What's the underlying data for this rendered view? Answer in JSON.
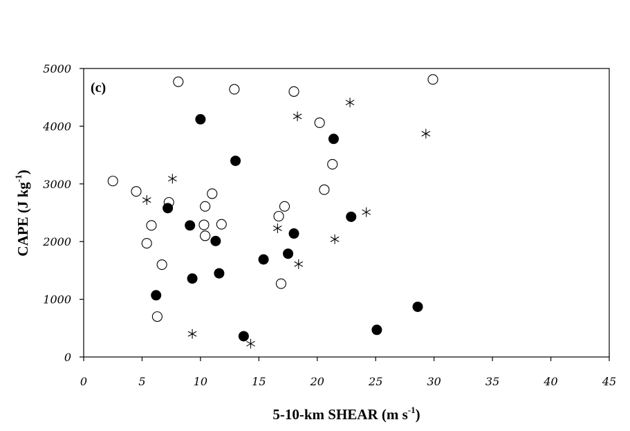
{
  "chart_data": {
    "type": "scatter",
    "panel_label": "(c)",
    "xlabel": "5-10-km SHEAR (m s",
    "xlabel_sup": "-1",
    "xlabel_end": ")",
    "ylabel": "CAPE (J kg",
    "ylabel_sup": "-1",
    "ylabel_end": ")",
    "xlim": [
      0,
      45
    ],
    "ylim": [
      0,
      5000
    ],
    "xticks": [
      0,
      5,
      10,
      15,
      20,
      25,
      30,
      35,
      40,
      45
    ],
    "yticks": [
      0,
      1000,
      2000,
      3000,
      4000,
      5000
    ],
    "grid": false,
    "legend": "none",
    "series": [
      {
        "marker": "open-circle",
        "points": [
          [
            2.5,
            3050
          ],
          [
            4.5,
            2870
          ],
          [
            5.4,
            1970
          ],
          [
            5.8,
            2280
          ],
          [
            6.3,
            700
          ],
          [
            6.7,
            1600
          ],
          [
            7.3,
            2680
          ],
          [
            8.1,
            4770
          ],
          [
            10.3,
            2290
          ],
          [
            10.4,
            2610
          ],
          [
            10.4,
            2100
          ],
          [
            11.0,
            2830
          ],
          [
            11.8,
            2300
          ],
          [
            12.9,
            4640
          ],
          [
            16.7,
            2440
          ],
          [
            16.9,
            1270
          ],
          [
            17.2,
            2610
          ],
          [
            18.0,
            4600
          ],
          [
            20.2,
            4060
          ],
          [
            20.6,
            2900
          ],
          [
            21.3,
            3340
          ],
          [
            29.9,
            4810
          ]
        ]
      },
      {
        "marker": "filled-circle",
        "points": [
          [
            6.2,
            1070
          ],
          [
            7.2,
            2580
          ],
          [
            9.1,
            2280
          ],
          [
            9.3,
            1360
          ],
          [
            10.0,
            4120
          ],
          [
            11.3,
            2010
          ],
          [
            11.6,
            1450
          ],
          [
            13.0,
            3400
          ],
          [
            13.7,
            360
          ],
          [
            15.4,
            1690
          ],
          [
            17.5,
            1790
          ],
          [
            18.0,
            2140
          ],
          [
            21.4,
            3780
          ],
          [
            22.9,
            2430
          ],
          [
            25.1,
            470
          ],
          [
            28.6,
            870
          ]
        ]
      },
      {
        "marker": "asterisk",
        "points": [
          [
            5.4,
            2720
          ],
          [
            7.6,
            3090
          ],
          [
            9.3,
            400
          ],
          [
            14.3,
            230
          ],
          [
            16.6,
            2230
          ],
          [
            18.3,
            4170
          ],
          [
            18.4,
            1610
          ],
          [
            21.5,
            2040
          ],
          [
            22.8,
            4410
          ],
          [
            24.2,
            2510
          ],
          [
            29.3,
            3870
          ]
        ]
      }
    ]
  }
}
